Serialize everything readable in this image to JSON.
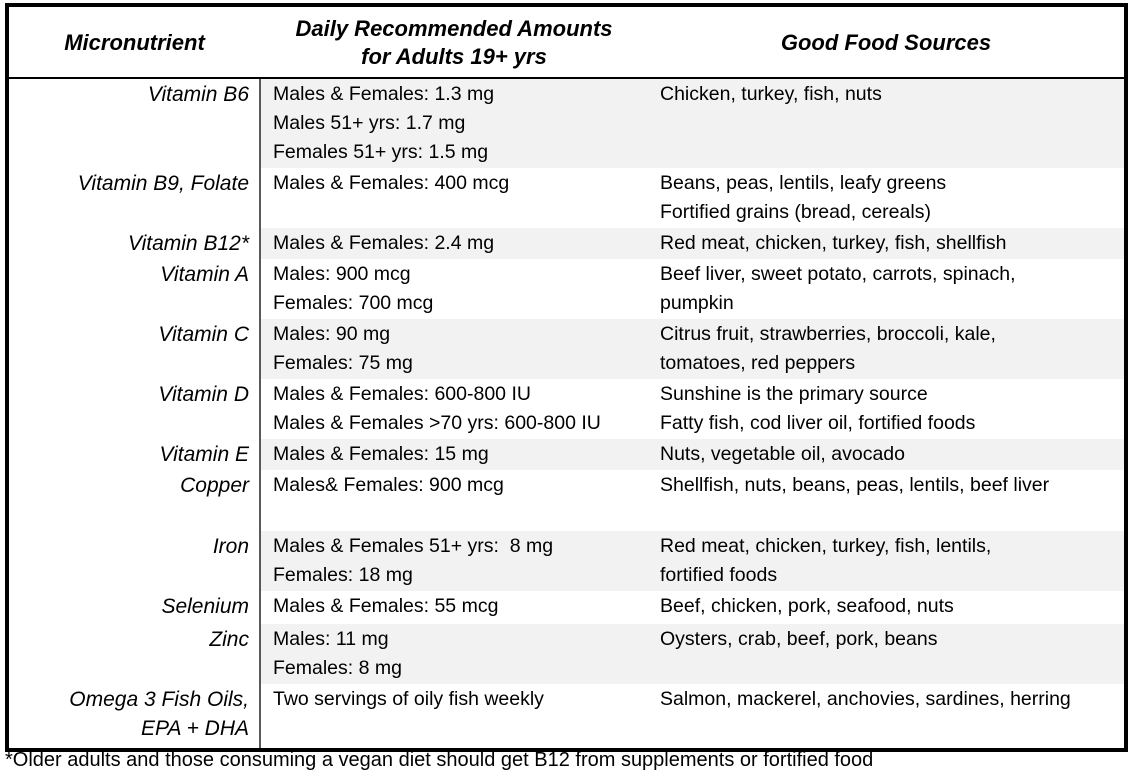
{
  "table": {
    "headers": {
      "micronutrient": "Micronutrient",
      "amounts": "Daily Recommended Amounts\nfor Adults 19+ yrs",
      "foods": "Good Food Sources"
    },
    "rows": [
      {
        "name": "Vitamin B6",
        "amounts": "Males & Females: 1.3 mg\nMales 51+ yrs: 1.7 mg\nFemales 51+ yrs: 1.5 mg",
        "foods": "Chicken, turkey, fish, nuts"
      },
      {
        "name": "Vitamin B9, Folate",
        "amounts": "Males & Females: 400 mcg",
        "foods": "Beans, peas, lentils, leafy greens\nFortified grains (bread, cereals)"
      },
      {
        "name": "Vitamin B12*",
        "amounts": "Males & Females: 2.4 mg",
        "foods": "Red meat, chicken, turkey, fish, shellfish"
      },
      {
        "name": "Vitamin A",
        "amounts": "Males: 900 mcg\nFemales: 700 mcg",
        "foods": "Beef liver, sweet potato, carrots, spinach,\npumpkin"
      },
      {
        "name": "Vitamin C",
        "amounts": "Males: 90 mg\nFemales: 75 mg",
        "foods": "Citrus fruit, strawberries, broccoli, kale,\ntomatoes, red peppers"
      },
      {
        "name": "Vitamin D",
        "amounts": "Males & Females: 600-800 IU\nMales & Females >70 yrs: 600-800 IU",
        "foods": "Sunshine is the primary source\nFatty fish, cod liver oil, fortified foods"
      },
      {
        "name": "Vitamin E",
        "amounts": "Males & Females: 15 mg",
        "foods": "Nuts, vegetable oil, avocado"
      },
      {
        "name": "Copper",
        "amounts": "Males& Females: 900 mcg",
        "foods": "Shellfish, nuts, beans, peas, lentils, beef liver"
      },
      {
        "name": "Iron",
        "amounts": "Males & Females 51+ yrs:  8 mg\nFemales: 18 mg",
        "foods": "Red meat, chicken, turkey, fish, lentils,\nfortified foods"
      },
      {
        "name": "Selenium",
        "amounts": "Males & Females: 55 mcg",
        "foods": "Beef, chicken, pork, seafood, nuts"
      },
      {
        "name": "Zinc",
        "amounts": "Males: 11 mg\nFemales: 8 mg",
        "foods": "Oysters, crab, beef, pork, beans"
      },
      {
        "name": "Omega 3 Fish Oils,\nEPA + DHA",
        "amounts": "Two servings of oily fish weekly",
        "foods": "Salmon, mackerel, anchovies, sardines, herring"
      }
    ],
    "footnote": "*Older adults and those consuming a vegan diet should get B12 from supplements or fortified food"
  },
  "colors": {
    "row_shading": "#f2f2f2",
    "outer_border": "#000000",
    "column_divider": "#595959"
  }
}
